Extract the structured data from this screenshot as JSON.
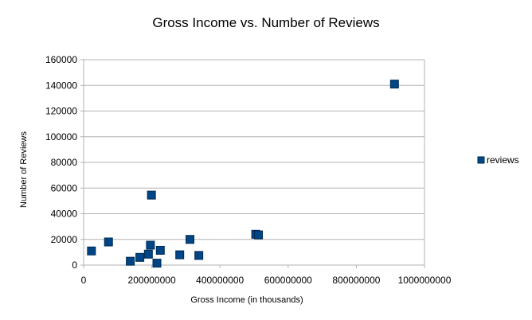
{
  "chart_data": {
    "type": "scatter",
    "title": "Gross Income vs. Number of Reviews",
    "xlabel": "Gross Income (in thousands)",
    "ylabel": "Number of Reviews",
    "xlim": [
      0,
      1000000000
    ],
    "ylim": [
      0,
      160000
    ],
    "x_ticks": [
      0,
      200000000,
      400000000,
      600000000,
      800000000,
      1000000000
    ],
    "x_tick_labels": [
      "0",
      "200000000",
      "400000000",
      "600000000",
      "800000000",
      "1000000000"
    ],
    "y_ticks": [
      0,
      20000,
      40000,
      60000,
      80000,
      100000,
      120000,
      140000,
      160000
    ],
    "y_tick_labels": [
      "0",
      "20000",
      "40000",
      "60000",
      "80000",
      "100000",
      "120000",
      "140000",
      "160000"
    ],
    "grid": "horizontal",
    "legend_position": "right",
    "series": [
      {
        "name": "reviews",
        "color": "#004586",
        "points": [
          {
            "x": 23000000,
            "y": 11000
          },
          {
            "x": 73000000,
            "y": 18000
          },
          {
            "x": 137000000,
            "y": 3000
          },
          {
            "x": 165000000,
            "y": 6000
          },
          {
            "x": 190000000,
            "y": 8500
          },
          {
            "x": 196000000,
            "y": 15500
          },
          {
            "x": 199000000,
            "y": 54500
          },
          {
            "x": 215000000,
            "y": 1500
          },
          {
            "x": 225000000,
            "y": 11500
          },
          {
            "x": 282000000,
            "y": 8000
          },
          {
            "x": 312000000,
            "y": 20000
          },
          {
            "x": 338000000,
            "y": 7500
          },
          {
            "x": 505000000,
            "y": 24000
          },
          {
            "x": 513000000,
            "y": 23500
          },
          {
            "x": 912000000,
            "y": 141000
          }
        ]
      }
    ]
  }
}
